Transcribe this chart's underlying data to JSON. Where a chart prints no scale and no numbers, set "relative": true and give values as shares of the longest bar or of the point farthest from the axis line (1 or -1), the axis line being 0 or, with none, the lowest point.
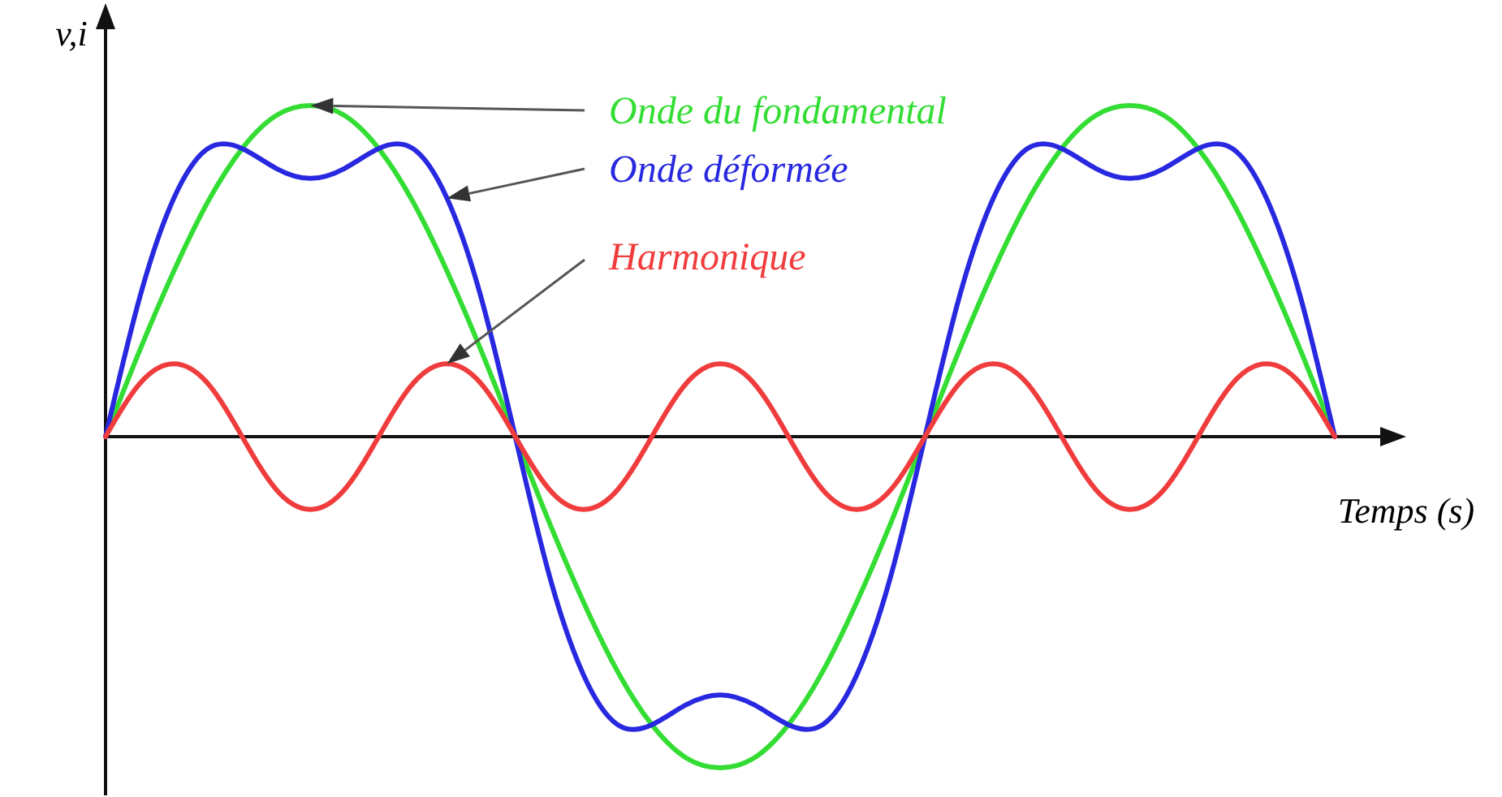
{
  "chart_data": {
    "type": "line",
    "relative": true,
    "xlabel": "Temps (s)",
    "ylabel": "v,i",
    "legend": false,
    "grid": false,
    "marker": "none",
    "line_style": "solid",
    "categories": [
      null,
      null,
      null,
      null,
      null,
      null,
      null,
      null,
      null,
      null,
      null,
      null,
      null,
      null,
      null,
      null,
      null,
      null,
      null,
      null,
      null,
      null,
      null,
      null,
      null,
      null,
      null,
      null,
      null,
      null,
      null,
      null,
      null,
      null,
      null,
      null,
      null
    ],
    "series": [
      {
        "name": "Onde du fondamental",
        "color": "#33dd33",
        "values": [
          0,
          0.26,
          0.5,
          0.71,
          0.87,
          0.97,
          1,
          0.97,
          0.87,
          0.71,
          0.5,
          0.26,
          0,
          -0.26,
          -0.5,
          -0.71,
          -0.87,
          -0.97,
          -1,
          -0.97,
          -0.87,
          -0.71,
          -0.5,
          -0.26,
          0,
          0.26,
          0.5,
          0.71,
          0.87,
          0.97,
          1,
          0.97,
          0.87,
          0.71,
          0.5,
          0.26,
          0
        ]
      },
      {
        "name": "Onde déformée",
        "color": "#2828e0",
        "values": [
          0,
          0.42,
          0.72,
          0.87,
          0.87,
          0.81,
          0.78,
          0.81,
          0.87,
          0.87,
          0.72,
          0.42,
          0,
          -0.42,
          -0.72,
          -0.87,
          -0.87,
          -0.81,
          -0.78,
          -0.81,
          -0.87,
          -0.87,
          -0.72,
          -0.42,
          0,
          0.42,
          0.72,
          0.87,
          0.87,
          0.81,
          0.78,
          0.81,
          0.87,
          0.87,
          0.72,
          0.42,
          0
        ]
      },
      {
        "name": "Harmonique",
        "color": "#f03c3c",
        "values": [
          0,
          0.16,
          0.22,
          0.16,
          0,
          -0.16,
          -0.22,
          -0.16,
          0,
          0.16,
          0.22,
          0.16,
          0,
          -0.16,
          -0.22,
          -0.16,
          0,
          0.16,
          0.22,
          0.16,
          0,
          -0.16,
          -0.22,
          -0.16,
          0,
          0.16,
          0.22,
          0.16,
          0,
          -0.16,
          -0.22,
          -0.16,
          0,
          0.16,
          0.22,
          0.16,
          0
        ]
      }
    ]
  }
}
